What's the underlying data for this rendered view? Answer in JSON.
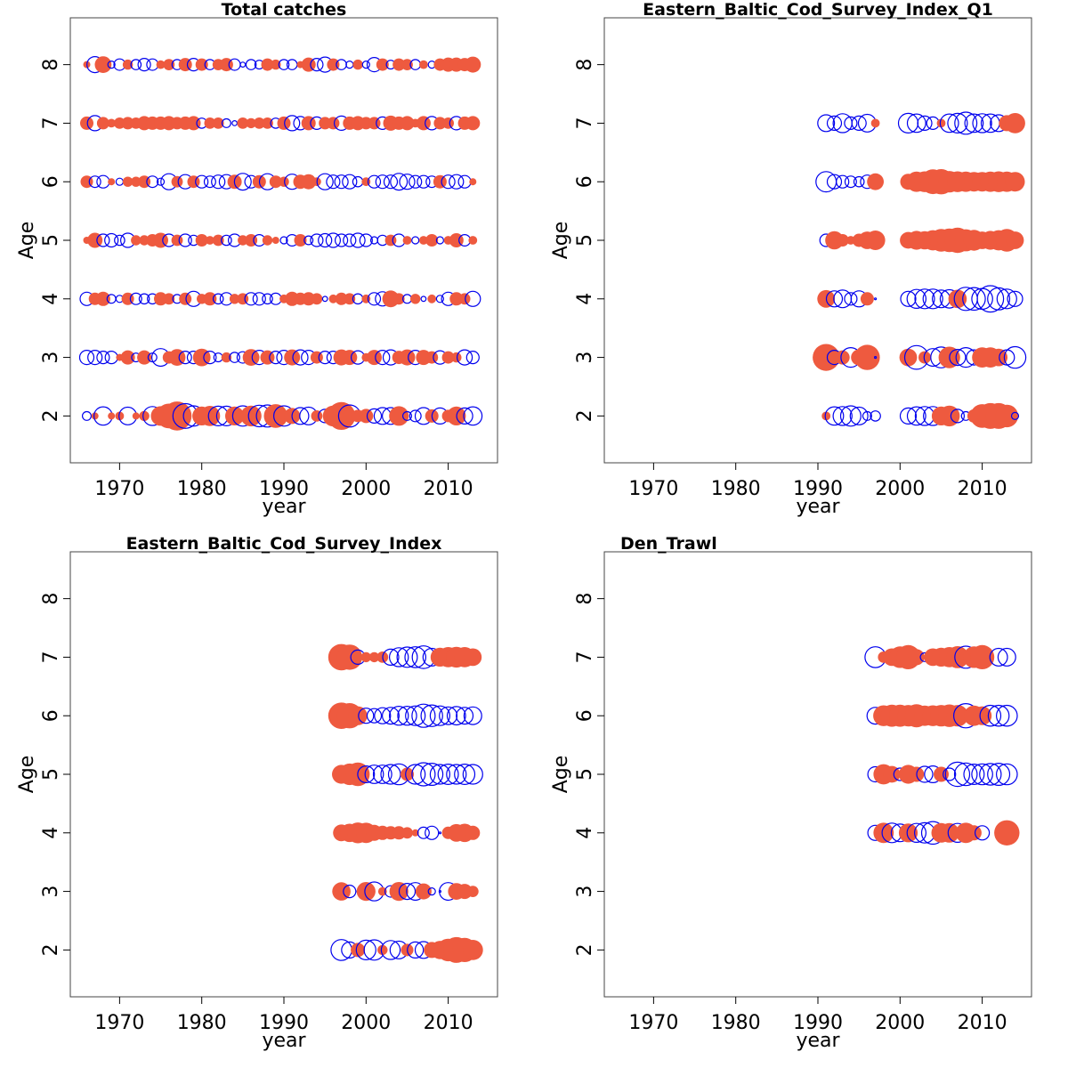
{
  "colors": {
    "positive": "#0000ee",
    "negative": "#ee5a3f"
  },
  "chart_data": [
    {
      "type": "scatter",
      "subtype": "bubble",
      "title": "Total catches",
      "xlabel": "year",
      "ylabel": "Age",
      "xlim": [
        1964,
        2016
      ],
      "ylim": [
        1.2,
        8.8
      ],
      "xticks": [
        1970,
        1980,
        1990,
        2000,
        2010
      ],
      "yticks": [
        2,
        3,
        4,
        5,
        6,
        7,
        8
      ],
      "years": [
        1966,
        1967,
        1968,
        1969,
        1970,
        1971,
        1972,
        1973,
        1974,
        1975,
        1976,
        1977,
        1978,
        1979,
        1980,
        1981,
        1982,
        1983,
        1984,
        1985,
        1986,
        1987,
        1988,
        1989,
        1990,
        1991,
        1992,
        1993,
        1994,
        1995,
        1996,
        1997,
        1998,
        1999,
        2000,
        2001,
        2002,
        2003,
        2004,
        2005,
        2006,
        2007,
        2008,
        2009,
        2010,
        2011,
        2012,
        2013
      ],
      "ages": [
        2,
        3,
        4,
        5,
        6,
        7,
        8
      ],
      "residuals": [
        [
          0.3,
          -0.2,
          1.3,
          -0.2,
          -0.3,
          1.2,
          -0.2,
          -0.4,
          1.4,
          -1.5,
          -2.4,
          -3.3,
          2.4,
          1.6,
          -1.4,
          -1.6,
          1.5,
          1.5,
          -1.4,
          1.6,
          -1.7,
          1.8,
          1.9,
          -2.2,
          1.6,
          -1.0,
          1.1,
          1.2,
          -0.5,
          0.7,
          -1.7,
          -3.0,
          1.9,
          -0.6,
          -0.8,
          0.8,
          1.1,
          1.1,
          -1.5,
          0.3,
          0.5,
          1.1,
          -0.7,
          1.0,
          -0.6,
          -1.4,
          1.0,
          1.3
        ],
        [
          0.8,
          0.8,
          0.6,
          0.6,
          -0.2,
          -0.8,
          0.3,
          -0.8,
          0.3,
          1.2,
          -0.6,
          -1.1,
          0.6,
          0.6,
          -1.2,
          0.6,
          0.3,
          -0.4,
          0.4,
          0.5,
          -1.1,
          0.8,
          -0.8,
          0.6,
          0.8,
          -1.0,
          0.9,
          0.8,
          -0.6,
          0.6,
          0.6,
          -1.0,
          -0.9,
          0.7,
          -0.3,
          -0.9,
          0.8,
          0.9,
          -0.7,
          -1.0,
          0.8,
          -0.9,
          -0.6,
          0.7,
          -0.6,
          -0.4,
          0.9,
          0.6
        ],
        [
          0.7,
          -0.6,
          -0.8,
          0.3,
          0.2,
          -0.6,
          0.5,
          0.4,
          0.4,
          -0.7,
          -0.5,
          0.3,
          -0.6,
          0.9,
          -0.4,
          -0.7,
          0.4,
          0.6,
          -0.4,
          -0.5,
          0.6,
          0.6,
          0.4,
          0.5,
          -0.3,
          -0.8,
          -0.6,
          -0.7,
          -0.5,
          0.1,
          -0.3,
          -0.6,
          -0.5,
          0.4,
          -0.3,
          0.6,
          0.8,
          -1.1,
          -0.5,
          0.3,
          -0.4,
          0.1,
          -0.3,
          0.2,
          0.7,
          -0.7,
          -0.5,
          0.9
        ],
        [
          -0.2,
          -0.9,
          0.6,
          0.7,
          0.4,
          0.8,
          -0.4,
          -0.4,
          -0.6,
          -0.9,
          0.6,
          -0.5,
          0.6,
          0.4,
          -0.6,
          -0.3,
          -0.5,
          0.4,
          0.6,
          -0.4,
          -0.6,
          0.5,
          -0.4,
          -0.2,
          0.2,
          0.5,
          -0.6,
          0.3,
          0.6,
          0.7,
          0.8,
          0.6,
          0.6,
          0.8,
          0.6,
          0.2,
          0.4,
          -0.5,
          0.6,
          -0.3,
          0.2,
          -0.3,
          -0.6,
          0.2,
          -0.3,
          -0.8,
          0.5,
          -0.3
        ],
        [
          -0.6,
          0.5,
          0.6,
          -0.2,
          0.2,
          -0.4,
          -0.4,
          -0.6,
          0.5,
          0.2,
          1.0,
          -0.5,
          0.8,
          -0.6,
          0.6,
          0.5,
          0.7,
          0.8,
          -0.8,
          1.1,
          0.6,
          -0.7,
          1.0,
          -0.6,
          -0.4,
          0.9,
          -0.8,
          -0.9,
          -0.3,
          1.0,
          0.7,
          0.7,
          0.8,
          0.4,
          -0.3,
          0.6,
          0.7,
          0.7,
          1.1,
          0.9,
          0.6,
          0.6,
          0.5,
          -0.7,
          0.7,
          0.8,
          0.6,
          -0.2
        ],
        [
          -0.7,
          0.9,
          -0.6,
          -0.3,
          -0.5,
          -0.6,
          -0.5,
          -0.8,
          -0.7,
          -0.7,
          -0.8,
          -0.6,
          -0.7,
          -0.8,
          0.4,
          -0.5,
          -0.5,
          0.3,
          0.1,
          -0.5,
          -0.4,
          -0.5,
          -0.5,
          0.4,
          -0.7,
          0.9,
          0.7,
          -0.8,
          0.6,
          -0.6,
          -0.6,
          0.8,
          -0.7,
          -0.8,
          -0.6,
          -0.6,
          0.6,
          -0.9,
          -0.7,
          -0.8,
          -0.3,
          -0.8,
          0.7,
          -0.6,
          -0.5,
          0.7,
          -0.7,
          -0.8
        ],
        [
          -0.2,
          1.0,
          -1.1,
          0.2,
          0.5,
          -0.4,
          0.4,
          0.6,
          0.5,
          -0.3,
          -0.5,
          0.4,
          -0.7,
          0.6,
          -0.6,
          0.4,
          -0.5,
          -0.7,
          0.5,
          0.1,
          0.4,
          0.3,
          -0.6,
          -0.4,
          0.4,
          0.4,
          -0.2,
          -0.8,
          0.6,
          0.9,
          -0.6,
          0.4,
          0.2,
          -0.4,
          0.2,
          0.8,
          -0.6,
          0.3,
          -0.6,
          -0.5,
          0.4,
          -0.3,
          0.2,
          -0.6,
          -0.8,
          -0.8,
          -0.7,
          -1.0
        ]
      ]
    },
    {
      "type": "scatter",
      "subtype": "bubble",
      "title": "Eastern_Baltic_Cod_Survey_Index_Q1",
      "xlabel": "year",
      "ylabel": "Age",
      "xlim": [
        1964,
        2016
      ],
      "ylim": [
        1.2,
        8.8
      ],
      "xticks": [
        1970,
        1980,
        1990,
        2000,
        2010
      ],
      "yticks": [
        2,
        3,
        4,
        5,
        6,
        7,
        8
      ],
      "years": [
        1991,
        1992,
        1993,
        1994,
        1995,
        1996,
        1997,
        2001,
        2002,
        2003,
        2004,
        2005,
        2006,
        2007,
        2008,
        2009,
        2010,
        2011,
        2012,
        2013,
        2014
      ],
      "ages": [
        2,
        3,
        4,
        5,
        6,
        7
      ],
      "residuals": [
        [
          -0.3,
          1.3,
          1.4,
          1.6,
          1.2,
          0.3,
          0.4,
          1.0,
          1.3,
          1.4,
          1.4,
          -1.4,
          -1.7,
          0.7,
          0.3,
          -0.7,
          -2.2,
          -2.6,
          -2.6,
          -2.0,
          0.2
        ],
        [
          -2.8,
          0.8,
          -0.8,
          1.5,
          -1.0,
          -2.5,
          0.0,
          -1.2,
          2.2,
          -0.6,
          1.2,
          1.7,
          -1.8,
          1.0,
          1.5,
          0.9,
          -1.6,
          -1.6,
          -1.2,
          0.9,
          1.8
        ],
        [
          -1.2,
          1.0,
          1.2,
          0.6,
          1.0,
          -0.7,
          0.0,
          0.9,
          1.4,
          1.5,
          1.5,
          1.2,
          1.3,
          -1.3,
          2.1,
          2.0,
          1.7,
          2.7,
          1.9,
          1.5,
          0.9
        ],
        [
          0.6,
          -1.3,
          -0.6,
          -0.3,
          -0.7,
          -1.2,
          -1.5,
          -1.1,
          -1.4,
          -1.3,
          -1.6,
          -2.0,
          -2.2,
          -2.5,
          -1.9,
          -1.7,
          -1.2,
          -1.4,
          -1.6,
          -2.0,
          -1.2
        ],
        [
          1.6,
          0.8,
          0.6,
          0.5,
          0.4,
          0.7,
          -1.1,
          -1.0,
          -1.6,
          -1.7,
          -2.4,
          -2.5,
          -1.8,
          -1.7,
          -1.6,
          -1.5,
          -1.5,
          -1.6,
          -1.7,
          -1.6,
          -1.5
        ],
        [
          1.1,
          0.8,
          1.4,
          0.6,
          0.8,
          1.2,
          -0.3,
          1.5,
          1.3,
          0.8,
          0.6,
          -0.3,
          1.3,
          1.5,
          1.9,
          1.3,
          1.4,
          1.3,
          1.1,
          -1.0,
          -1.6
        ]
      ]
    },
    {
      "type": "scatter",
      "subtype": "bubble",
      "title": "Eastern_Baltic_Cod_Survey_Index",
      "xlabel": "year",
      "ylabel": "Age",
      "xlim": [
        1964,
        2016
      ],
      "ylim": [
        1.2,
        8.8
      ],
      "xticks": [
        1970,
        1980,
        1990,
        2000,
        2010
      ],
      "yticks": [
        2,
        3,
        4,
        5,
        6,
        7,
        8
      ],
      "years": [
        1997,
        1998,
        1999,
        2000,
        2001,
        2002,
        2003,
        2004,
        2005,
        2006,
        2007,
        2008,
        2009,
        2010,
        2011,
        2012,
        2013
      ],
      "ages": [
        2,
        3,
        4,
        5,
        6,
        7
      ],
      "residuals": [
        [
          1.7,
          1.0,
          -0.8,
          1.5,
          1.6,
          -0.4,
          1.4,
          1.2,
          -0.6,
          1.0,
          1.1,
          -1.0,
          -1.3,
          -2.0,
          -2.6,
          -2.3,
          -1.6
        ],
        [
          -1.3,
          0.6,
          0.0,
          -1.4,
          1.4,
          -0.3,
          0.5,
          -1.4,
          1.0,
          1.2,
          -1.0,
          0.2,
          0.0,
          1.2,
          -1.1,
          -0.9,
          -0.5
        ],
        [
          -1.1,
          -1.3,
          -1.7,
          -1.6,
          -1.0,
          -0.8,
          -0.7,
          -0.7,
          -0.5,
          -0.2,
          0.5,
          0.7,
          0.0,
          -0.6,
          -1.2,
          -1.3,
          -0.8
        ],
        [
          -1.4,
          -1.8,
          -2.2,
          1.1,
          1.3,
          1.3,
          1.5,
          1.7,
          -0.7,
          1.5,
          2.1,
          1.9,
          1.5,
          1.6,
          1.5,
          1.6,
          1.5
        ],
        [
          -2.7,
          -2.5,
          -1.4,
          0.9,
          0.8,
          1.0,
          1.1,
          1.4,
          1.4,
          1.5,
          2.1,
          1.8,
          1.5,
          1.2,
          1.3,
          1.1,
          1.2
        ],
        [
          -2.7,
          -2.5,
          0.8,
          -0.4,
          -0.4,
          -0.5,
          1.0,
          1.4,
          1.6,
          1.7,
          2.0,
          1.2,
          -1.4,
          -1.6,
          -1.7,
          -1.6,
          -1.2
        ]
      ]
    },
    {
      "type": "scatter",
      "subtype": "bubble",
      "title": "Den_Trawl",
      "xlabel": "year",
      "ylabel": "Age",
      "xlim": [
        1964,
        2016
      ],
      "ylim": [
        1.2,
        8.8
      ],
      "xticks": [
        1970,
        1980,
        1990,
        2000,
        2010
      ],
      "yticks": [
        2,
        3,
        4,
        5,
        6,
        7,
        8
      ],
      "years": [
        1997,
        1998,
        1999,
        2000,
        2001,
        2002,
        2003,
        2004,
        2005,
        2006,
        2007,
        2008,
        2009,
        2010,
        2011,
        2012,
        2013
      ],
      "ages": [
        4,
        5,
        6,
        7
      ],
      "residuals": [
        [
          0.9,
          -1.6,
          1.5,
          1.2,
          -1.4,
          1.4,
          1.6,
          2.0,
          -1.5,
          -1.5,
          1.4,
          -1.6,
          -0.9,
          0.8,
          null,
          null,
          -2.5
        ],
        [
          0.9,
          -1.6,
          -1.1,
          0.6,
          -1.4,
          -0.9,
          1.0,
          1.1,
          -0.9,
          0.6,
          2.3,
          2.0,
          1.6,
          1.7,
          1.8,
          1.9,
          1.7
        ],
        [
          1.1,
          -1.7,
          -1.9,
          -1.9,
          -1.8,
          -2.1,
          -1.6,
          -1.7,
          -1.8,
          -2.0,
          -1.8,
          2.3,
          -1.6,
          -1.4,
          1.7,
          1.7,
          1.7
        ],
        [
          1.7,
          -0.5,
          -1.2,
          -1.8,
          -2.3,
          -1.0,
          0.3,
          -1.2,
          -1.4,
          -1.6,
          -1.9,
          1.9,
          -1.8,
          -2.3,
          null,
          1.2,
          1.2
        ]
      ]
    }
  ]
}
